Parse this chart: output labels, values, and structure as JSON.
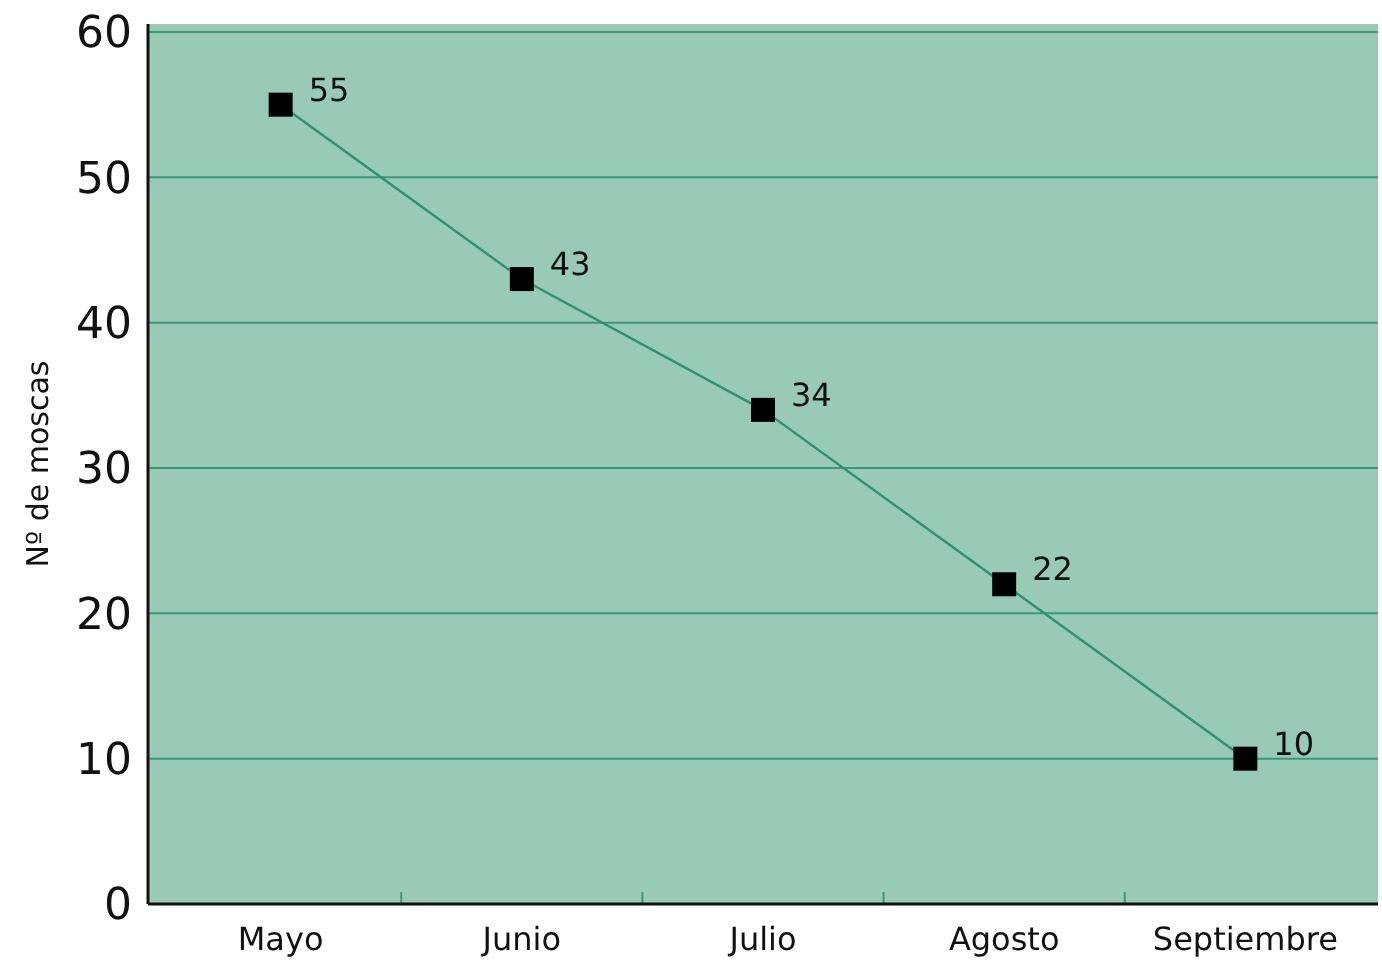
{
  "chart_data": {
    "type": "line",
    "ylabel": "Nº de moscas",
    "categories": [
      "Mayo",
      "Junio",
      "Julio",
      "Agosto",
      "Septiembre"
    ],
    "series": [
      {
        "color": "#2e9170",
        "values": [
          55,
          43,
          34,
          22,
          10
        ]
      }
    ],
    "ylim": [
      0,
      60
    ],
    "yticks": [
      0,
      10,
      20,
      30,
      40,
      50,
      60
    ],
    "grid": "y",
    "marker": "square",
    "line_style": "solid",
    "data_labels": true
  }
}
